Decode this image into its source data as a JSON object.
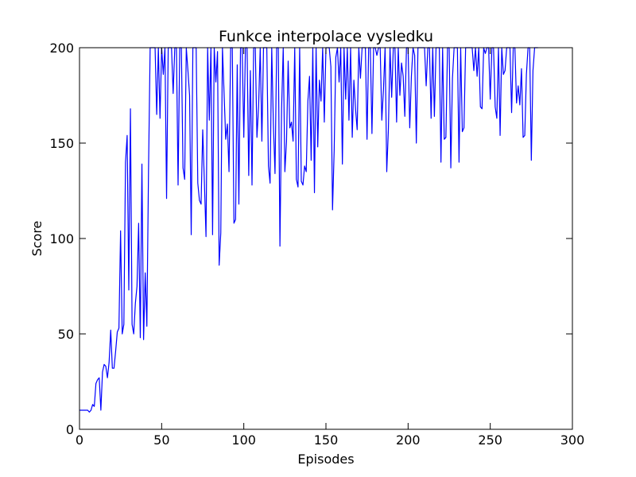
{
  "chart_data": {
    "type": "line",
    "title": "Funkce interpolace vysledku",
    "xlabel": "Episodes",
    "ylabel": "Score",
    "xlim": [
      0,
      300
    ],
    "ylim": [
      0,
      200
    ],
    "xticks": [
      0,
      50,
      100,
      150,
      200,
      250,
      300
    ],
    "yticks": [
      0,
      50,
      100,
      150,
      200
    ],
    "grid": false,
    "line_color": "#0000ff",
    "series": [
      {
        "values": [
          10,
          10,
          10,
          10,
          10,
          10,
          9,
          10,
          13,
          12,
          24,
          26,
          27,
          10,
          30,
          34,
          33,
          27,
          35,
          52,
          32,
          32,
          41,
          51,
          53,
          104,
          50,
          55,
          140,
          154,
          73,
          168,
          55,
          50,
          66,
          75,
          108,
          48,
          139,
          47,
          82,
          54,
          135,
          200,
          200,
          200,
          200,
          165,
          200,
          163,
          200,
          186,
          200,
          121,
          200,
          200,
          200,
          176,
          200,
          200,
          128,
          200,
          200,
          137,
          131,
          200,
          188,
          175,
          102,
          200,
          200,
          200,
          129,
          120,
          118,
          157,
          130,
          101,
          200,
          162,
          200,
          102,
          200,
          182,
          198,
          86,
          103,
          200,
          176,
          152,
          160,
          135,
          200,
          200,
          108,
          110,
          191,
          118,
          200,
          200,
          153,
          200,
          200,
          133,
          188,
          128,
          200,
          200,
          153,
          169,
          200,
          151,
          200,
          200,
          200,
          138,
          129,
          200,
          160,
          134,
          200,
          200,
          96,
          168,
          200,
          135,
          151,
          193,
          158,
          161,
          151,
          200,
          131,
          127,
          200,
          130,
          128,
          138,
          135,
          172,
          185,
          141,
          200,
          124,
          200,
          148,
          183,
          172,
          200,
          161,
          200,
          200,
          200,
          190,
          115,
          146,
          195,
          200,
          182,
          200,
          139,
          200,
          173,
          200,
          162,
          200,
          153,
          183,
          168,
          157,
          200,
          184,
          200,
          200,
          200,
          152,
          200,
          200,
          155,
          200,
          200,
          196,
          200,
          200,
          162,
          178,
          200,
          135,
          157,
          200,
          174,
          200,
          200,
          161,
          200,
          175,
          192,
          185,
          164,
          200,
          200,
          158,
          185,
          200,
          196,
          150,
          200,
          200,
          200,
          200,
          200,
          180,
          200,
          200,
          163,
          200,
          164,
          200,
          200,
          200,
          140,
          200,
          152,
          153,
          200,
          200,
          137,
          184,
          200,
          200,
          200,
          140,
          200,
          156,
          158,
          200,
          200,
          200,
          200,
          200,
          188,
          200,
          185,
          200,
          169,
          168,
          200,
          197,
          200,
          200,
          173,
          200,
          200,
          169,
          163,
          200,
          154,
          200,
          186,
          188,
          200,
          200,
          200,
          166,
          200,
          200,
          171,
          180,
          170,
          189,
          153,
          154,
          186,
          200,
          200,
          141,
          188,
          200,
          200,
          200
        ]
      }
    ]
  }
}
